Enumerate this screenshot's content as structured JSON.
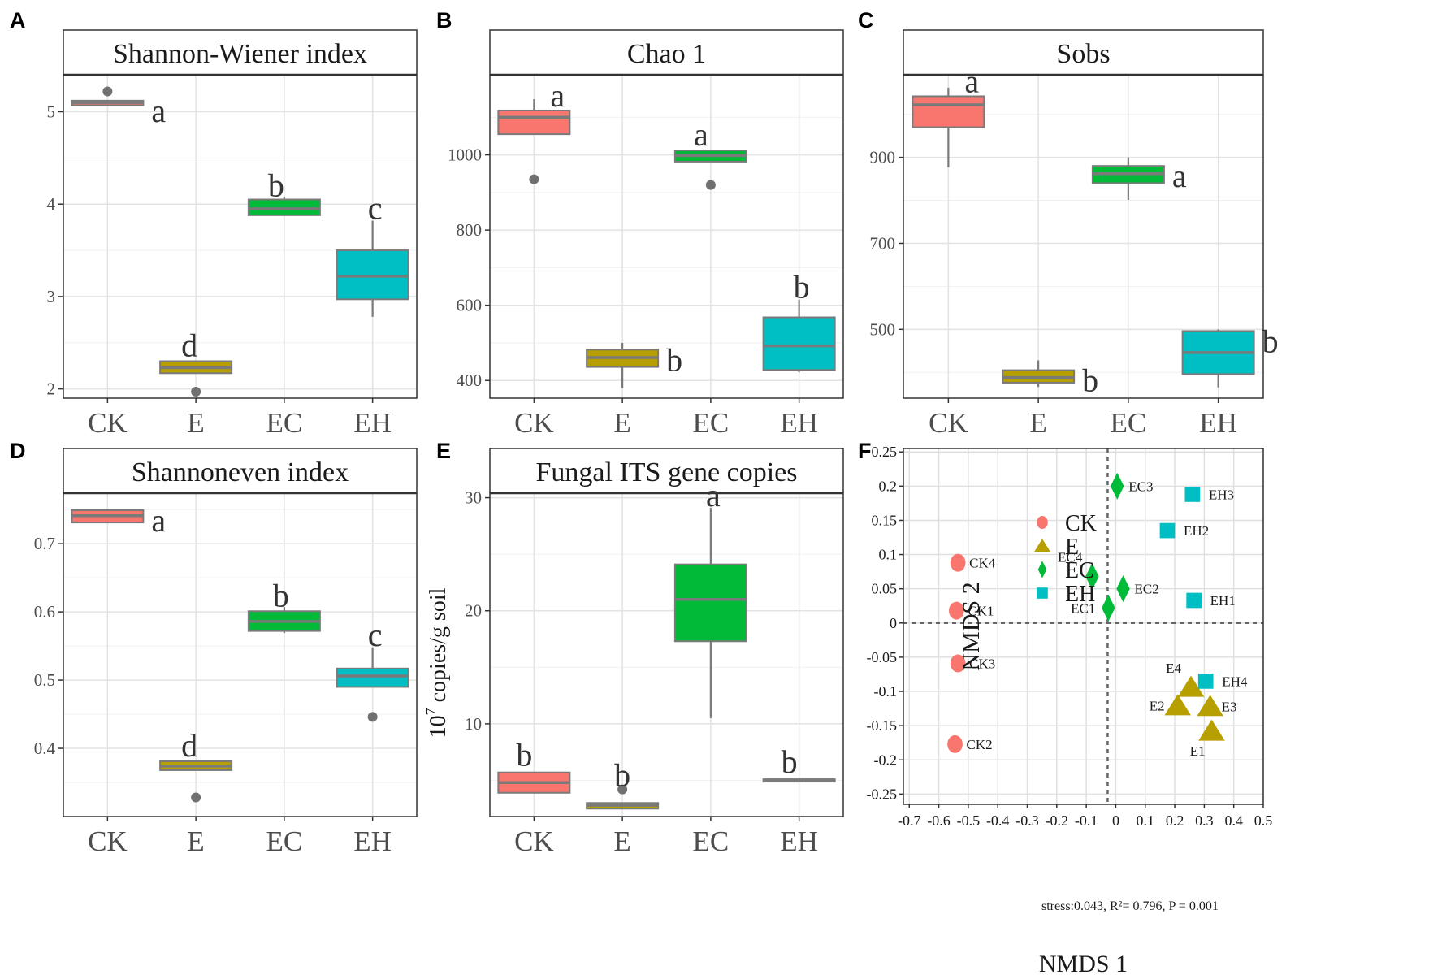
{
  "figure": {
    "panel_letters": [
      "A",
      "B",
      "C",
      "D",
      "E",
      "F"
    ]
  },
  "chart_data": [
    {
      "panel": "A",
      "type": "boxplot",
      "title": "Shannon-Wiener index",
      "xlabel": "",
      "ylabel": "",
      "categories": [
        "CK",
        "E",
        "EC",
        "EH"
      ],
      "ylim": [
        1.9,
        5.4
      ],
      "yticks": [
        2,
        3,
        4,
        5
      ],
      "colors": [
        "#F8766D",
        "#B79F00",
        "#00BA38",
        "#00BFC4"
      ],
      "boxes": [
        {
          "min": 5.07,
          "q1": 5.07,
          "median": 5.1,
          "q3": 5.12,
          "max": 5.12,
          "outliers": [
            5.22
          ],
          "letter": "a"
        },
        {
          "min": 2.17,
          "q1": 2.17,
          "median": 2.23,
          "q3": 2.3,
          "max": 2.3,
          "outliers": [
            1.97
          ],
          "letter": "d"
        },
        {
          "min": 3.88,
          "q1": 3.88,
          "median": 3.95,
          "q3": 4.05,
          "max": 4.08,
          "outliers": [],
          "letter": "b"
        },
        {
          "min": 2.78,
          "q1": 2.97,
          "median": 3.22,
          "q3": 3.5,
          "max": 3.82,
          "outliers": [],
          "letter": "c"
        }
      ]
    },
    {
      "panel": "B",
      "type": "boxplot",
      "title": "Chao 1",
      "xlabel": "",
      "ylabel": "",
      "categories": [
        "CK",
        "E",
        "EC",
        "EH"
      ],
      "ylim": [
        353,
        1213
      ],
      "yticks": [
        400,
        600,
        800,
        1000
      ],
      "colors": [
        "#F8766D",
        "#B79F00",
        "#00BA38",
        "#00BFC4"
      ],
      "boxes": [
        {
          "min": 1055,
          "q1": 1055,
          "median": 1100,
          "q3": 1118,
          "max": 1148,
          "outliers": [
            935
          ],
          "letter": "a"
        },
        {
          "min": 380,
          "q1": 436,
          "median": 461,
          "q3": 482,
          "max": 500,
          "outliers": [],
          "letter": "b"
        },
        {
          "min": 982,
          "q1": 982,
          "median": 998,
          "q3": 1012,
          "max": 1012,
          "outliers": [
            920
          ],
          "letter": "a"
        },
        {
          "min": 422,
          "q1": 428,
          "median": 492,
          "q3": 568,
          "max": 615,
          "outliers": [],
          "letter": "b"
        }
      ]
    },
    {
      "panel": "C",
      "type": "boxplot",
      "title": "Sobs",
      "xlabel": "",
      "ylabel": "",
      "categories": [
        "CK",
        "E",
        "EC",
        "EH"
      ],
      "ylim": [
        340,
        1092
      ],
      "yticks": [
        500,
        700,
        900
      ],
      "colors": [
        "#F8766D",
        "#B79F00",
        "#00BA38",
        "#00BFC4"
      ],
      "boxes": [
        {
          "min": 877,
          "q1": 970,
          "median": 1022,
          "q3": 1042,
          "max": 1062,
          "outliers": [],
          "letter": "a"
        },
        {
          "min": 366,
          "q1": 376,
          "median": 388,
          "q3": 405,
          "max": 428,
          "outliers": [],
          "letter": "b"
        },
        {
          "min": 801,
          "q1": 840,
          "median": 862,
          "q3": 880,
          "max": 900,
          "outliers": [],
          "letter": "a"
        },
        {
          "min": 365,
          "q1": 396,
          "median": 446,
          "q3": 496,
          "max": 500,
          "outliers": [],
          "letter": "b"
        }
      ]
    },
    {
      "panel": "D",
      "type": "boxplot",
      "title": "Shannoneven index",
      "xlabel": "",
      "ylabel": "",
      "categories": [
        "CK",
        "E",
        "EC",
        "EH"
      ],
      "ylim": [
        0.3,
        0.774
      ],
      "yticks": [
        0.4,
        0.5,
        0.6,
        0.7
      ],
      "colors": [
        "#F8766D",
        "#B79F00",
        "#00BA38",
        "#00BFC4"
      ],
      "boxes": [
        {
          "min": 0.731,
          "q1": 0.731,
          "median": 0.741,
          "q3": 0.749,
          "max": 0.749,
          "outliers": [],
          "letter": "a"
        },
        {
          "min": 0.368,
          "q1": 0.368,
          "median": 0.374,
          "q3": 0.381,
          "max": 0.383,
          "outliers": [
            0.328
          ],
          "letter": "d"
        },
        {
          "min": 0.569,
          "q1": 0.572,
          "median": 0.586,
          "q3": 0.601,
          "max": 0.607,
          "outliers": [],
          "letter": "b"
        },
        {
          "min": 0.49,
          "q1": 0.49,
          "median": 0.506,
          "q3": 0.517,
          "max": 0.548,
          "outliers": [
            0.446
          ],
          "letter": "c"
        }
      ]
    },
    {
      "panel": "E",
      "type": "boxplot",
      "title": "Fungal ITS gene copies",
      "xlabel": "",
      "ylabel": "10",
      "ylabel_exponent": "7",
      "ylabel_rest": " copies/g soil",
      "categories": [
        "CK",
        "E",
        "EC",
        "EH"
      ],
      "ylim": [
        1.8,
        30.4
      ],
      "yticks": [
        10,
        20,
        30
      ],
      "colors": [
        "#F8766D",
        "#B79F00",
        "#00BA38",
        "#00BFC4"
      ],
      "boxes": [
        {
          "min": 3.9,
          "q1": 3.9,
          "median": 4.8,
          "q3": 5.7,
          "max": 5.7,
          "outliers": [],
          "letter": "b"
        },
        {
          "min": 2.5,
          "q1": 2.5,
          "median": 2.8,
          "q3": 3.0,
          "max": 3.0,
          "outliers": [
            4.2
          ],
          "letter": "b"
        },
        {
          "min": 10.5,
          "q1": 17.3,
          "median": 21.0,
          "q3": 24.1,
          "max": 29.1,
          "outliers": [],
          "letter": "a"
        },
        {
          "min": 4.9,
          "q1": 4.9,
          "median": 5.0,
          "q3": 5.1,
          "max": 5.1,
          "outliers": [],
          "letter": "b"
        }
      ]
    },
    {
      "panel": "F",
      "type": "scatter",
      "title": "",
      "xlabel": "NMDS 1",
      "ylabel": "NMDS 2",
      "xlim": [
        -0.72,
        0.5
      ],
      "ylim": [
        -0.265,
        0.255
      ],
      "xticks": [
        -0.7,
        -0.6,
        -0.5,
        -0.4,
        -0.3,
        -0.2,
        -0.1,
        0,
        0.1,
        0.2,
        0.3,
        0.4,
        0.5
      ],
      "xtick_labels": [
        "-0.7",
        "-0.6",
        "-0.5",
        "-0.4",
        "-0.3",
        "-0.2",
        "-0.1",
        "0",
        "0.1",
        "0.2",
        "0.3",
        "0.4",
        "0.5"
      ],
      "yticks": [
        0.25,
        0.2,
        0.15,
        0.1,
        0.05,
        0,
        -0.05,
        -0.1,
        -0.15,
        -0.2,
        -0.25
      ],
      "ytick_labels": [
        "0.25",
        "0.2",
        "0.15",
        "0.1",
        "0.05",
        "0",
        "-0.05",
        "-0.1",
        "-0.15",
        "-0.2",
        "-0.25"
      ],
      "legend": {
        "placement": "top-left",
        "entries": [
          {
            "label": "CK",
            "shape": "circle",
            "color": "#F8766D"
          },
          {
            "label": "E",
            "shape": "triangle",
            "color": "#B79F00"
          },
          {
            "label": "EC",
            "shape": "diamond",
            "color": "#00BA38"
          },
          {
            "label": "EH",
            "shape": "square",
            "color": "#00BFC4"
          }
        ]
      },
      "points": [
        {
          "label": "CK1",
          "group": "CK",
          "x": -0.54,
          "y": 0.018,
          "label_side": "right"
        },
        {
          "label": "CK2",
          "group": "CK",
          "x": -0.545,
          "y": -0.177,
          "label_side": "right"
        },
        {
          "label": "CK3",
          "group": "CK",
          "x": -0.535,
          "y": -0.059,
          "label_side": "right"
        },
        {
          "label": "CK4",
          "group": "CK",
          "x": -0.535,
          "y": 0.088,
          "label_side": "right"
        },
        {
          "label": "E1",
          "group": "E",
          "x": 0.325,
          "y": -0.158,
          "label_side": "below-left"
        },
        {
          "label": "E2",
          "group": "E",
          "x": 0.21,
          "y": -0.121,
          "label_side": "left"
        },
        {
          "label": "E3",
          "group": "E",
          "x": 0.32,
          "y": -0.122,
          "label_side": "right"
        },
        {
          "label": "E4",
          "group": "E",
          "x": 0.255,
          "y": -0.094,
          "label_side": "above-left"
        },
        {
          "label": "EC1",
          "group": "EC",
          "x": -0.025,
          "y": 0.022,
          "label_side": "left"
        },
        {
          "label": "EC2",
          "group": "EC",
          "x": 0.025,
          "y": 0.05,
          "label_side": "right"
        },
        {
          "label": "EC3",
          "group": "EC",
          "x": 0.005,
          "y": 0.2,
          "label_side": "right"
        },
        {
          "label": "EC4",
          "group": "EC",
          "x": -0.08,
          "y": 0.068,
          "label_side": "above-left"
        },
        {
          "label": "EH1",
          "group": "EH",
          "x": 0.265,
          "y": 0.033,
          "label_side": "right"
        },
        {
          "label": "EH2",
          "group": "EH",
          "x": 0.175,
          "y": 0.135,
          "label_side": "right"
        },
        {
          "label": "EH3",
          "group": "EH",
          "x": 0.26,
          "y": 0.188,
          "label_side": "right"
        },
        {
          "label": "EH4",
          "group": "EH",
          "x": 0.305,
          "y": -0.085,
          "label_side": "right"
        }
      ],
      "annotation": "stress:0.043, R²= 0.796, P = 0.001"
    }
  ]
}
